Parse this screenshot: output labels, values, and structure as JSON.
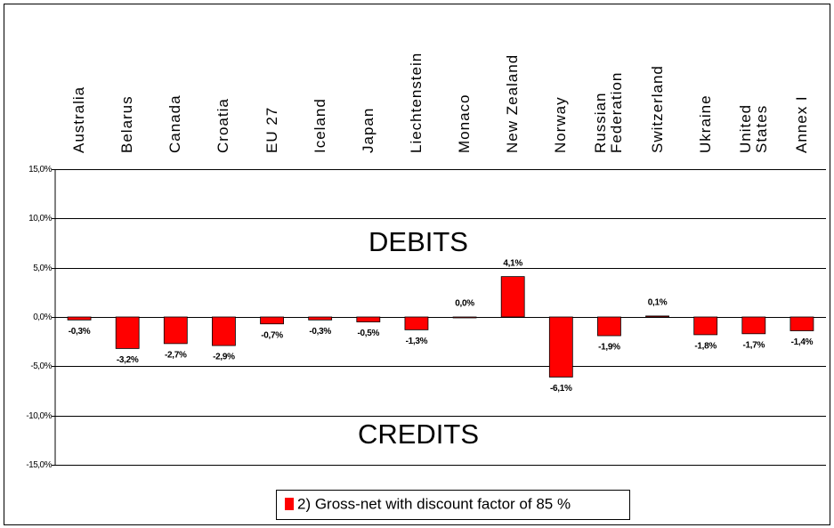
{
  "chart_data": {
    "type": "bar",
    "categories": [
      "Australia",
      "Belarus",
      "Canada",
      "Croatia",
      "EU 27",
      "Iceland",
      "Japan",
      "Liechtenstein",
      "Monaco",
      "New Zealand",
      "Norway",
      "Russian\nFederation",
      "Switzerland",
      "Ukraine",
      "United\nStates",
      "Annex I"
    ],
    "series": [
      {
        "name": "2) Gross-net with discount factor of 85 %",
        "color": "#ff0000",
        "values": [
          -0.3,
          -3.2,
          -2.7,
          -2.9,
          -0.7,
          -0.3,
          -0.5,
          -1.3,
          0.0,
          4.1,
          -6.1,
          -1.9,
          0.1,
          -1.8,
          -1.7,
          -1.4
        ],
        "value_labels": [
          "-0,3%",
          "-3,2%",
          "-2,7%",
          "-2,9%",
          "-0,7%",
          "-0,3%",
          "-0,5%",
          "-1,3%",
          "0,0%",
          "4,1%",
          "-6,1%",
          "-1,9%",
          "0,1%",
          "-1,8%",
          "-1,7%",
          "-1,4%"
        ]
      }
    ],
    "ylim": [
      -15,
      15
    ],
    "yticks": [
      {
        "value": -15,
        "label": "-15,0%"
      },
      {
        "value": -10,
        "label": "-10,0%"
      },
      {
        "value": -5,
        "label": "-5,0%"
      },
      {
        "value": 0,
        "label": "0,0%"
      },
      {
        "value": 5,
        "label": "5,0%"
      },
      {
        "value": 10,
        "label": "10,0%"
      },
      {
        "value": 15,
        "label": "15,0%"
      }
    ],
    "grid": true,
    "annotations": [
      "DEBITS",
      "CREDITS"
    ]
  }
}
